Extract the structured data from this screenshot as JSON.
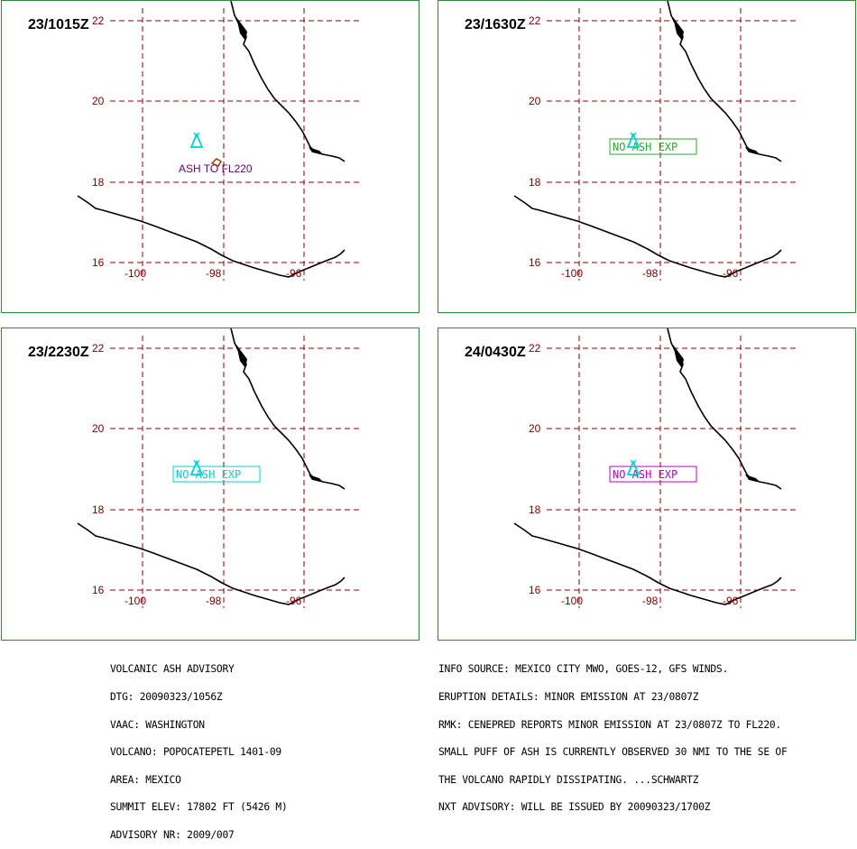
{
  "panels": [
    {
      "time": "23/1015Z",
      "annotation": {
        "text": "ASH TO FL220",
        "color": "#6b006b",
        "boxed": false
      },
      "ash_polygon": true
    },
    {
      "time": "23/1630Z",
      "annotation": {
        "text": "NO ASH EXP",
        "color": "#2ea82e",
        "boxed": true
      },
      "ash_polygon": false
    },
    {
      "time": "23/2230Z",
      "annotation": {
        "text": "NO ASH EXP",
        "color": "#00d0d0",
        "boxed": true
      },
      "ash_polygon": false
    },
    {
      "time": "24/0430Z",
      "annotation": {
        "text": "NO ASH EXP",
        "color": "#c000c0",
        "boxed": true
      },
      "ash_polygon": false
    }
  ],
  "map": {
    "lat_labels": [
      "22",
      "20",
      "18",
      "16"
    ],
    "lon_labels": [
      "-100",
      "-98",
      "-96"
    ],
    "volcano_symbol_color": "#00d0d0",
    "grid_color": "#8b0000",
    "coast_color": "#000000"
  },
  "advisory_left": [
    "VOLCANIC ASH ADVISORY",
    "DTG: 20090323/1056Z",
    "VAAC: WASHINGTON",
    "VOLCANO: POPOCATEPETL 1401-09",
    "AREA: MEXICO",
    "SUMMIT ELEV: 17802 FT (5426 M)",
    "ADVISORY NR: 2009/007"
  ],
  "advisory_right": [
    "INFO SOURCE: MEXICO CITY MWO, GOES-12, GFS WINDS.",
    "ERUPTION DETAILS: MINOR EMISSION AT 23/0807Z",
    "RMK: CENEPRED REPORTS MINOR EMISSION AT 23/0807Z TO FL220.",
    "SMALL PUFF OF ASH IS CURRENTLY OBSERVED 30 NMI TO THE SE OF",
    "THE VOLCANO RAPIDLY DISSIPATING. ...SCHWARTZ",
    "NXT ADVISORY: WILL BE ISSUED BY 20090323/1700Z"
  ]
}
